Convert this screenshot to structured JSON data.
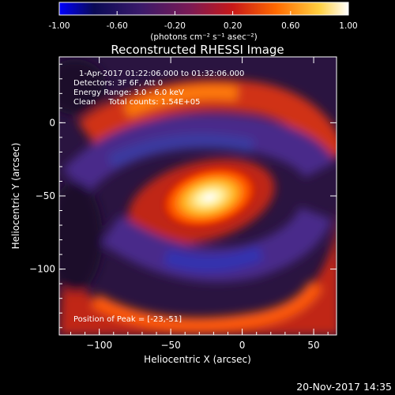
{
  "chart_data": {
    "type": "heatmap",
    "title": "Reconstructed RHESSI Image",
    "xlabel": "Heliocentric X (arcsec)",
    "ylabel": "Heliocentric Y (arcsec)",
    "xlim": [
      -128,
      66
    ],
    "ylim": [
      -145,
      45
    ],
    "x_ticks": [
      -100,
      -50,
      0,
      50
    ],
    "y_ticks": [
      -100,
      -50,
      0
    ],
    "colorbar": {
      "min": -1.0,
      "max": 1.0,
      "ticks": [
        "-1.00",
        "-0.60",
        "-0.20",
        "0.20",
        "0.60",
        "1.00"
      ],
      "tick_values": [
        -1.0,
        -0.6,
        -0.2,
        0.2,
        0.6,
        1.0
      ],
      "units": "(photons cm⁻² s⁻¹ asec⁻²)",
      "colors": [
        "#0000ff",
        "#0c0c3a",
        "#5a2a8a",
        "#b02020",
        "#ff6a00",
        "#ffd040",
        "#ffffff"
      ]
    },
    "peak": {
      "x": -23,
      "y": -51,
      "value": 1.0
    },
    "annotations": [
      "1-Apr-2017 01:22:06.000 to 01:32:06.000",
      "Detectors: 3F 6F, Att 0",
      "Energy Range: 3.0 - 6.0 keV",
      "Clean     Total counts: 1.54E+05"
    ],
    "peak_label": "Position of Peak = [-23,-51]",
    "timestamp": "20-Nov-2017 14:35"
  }
}
